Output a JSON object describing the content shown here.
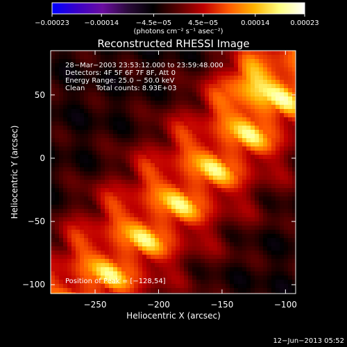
{
  "chart_data": {
    "type": "heatmap",
    "title": "Reconstructed RHESSI Image",
    "xlabel": "Heliocentric X (arcsec)",
    "ylabel": "Heliocentric Y (arcsec)",
    "xlim": [
      -285,
      -92
    ],
    "ylim": [
      -107,
      85
    ],
    "x_ticks": [
      -250,
      -200,
      -150,
      -100
    ],
    "y_ticks": [
      -100,
      -50,
      0,
      50
    ],
    "x_tick_labels": [
      "−250",
      "−200",
      "−150",
      "−100"
    ],
    "y_tick_labels": [
      "−100",
      "−50",
      "0",
      "50"
    ],
    "colorbar": {
      "min": -0.00023,
      "max": 0.00023,
      "ticks": [
        -0.00023,
        -0.00014,
        -4.5e-05,
        4.5e-05,
        0.00014,
        0.00023
      ],
      "tick_labels": [
        "−0.00023",
        "−0.00014",
        "−4.5e−05",
        "4.5e−05",
        "0.00014",
        "0.00023"
      ],
      "units": "(photons cm⁻² s⁻¹ asec⁻²)",
      "colormap": [
        "#0000ff",
        "#3a00c8",
        "#6a0da0",
        "#2a0a3a",
        "#000000",
        "#5a0000",
        "#c00000",
        "#ff5a00",
        "#ffb400",
        "#ffff80",
        "#ffffff"
      ]
    },
    "annotations": [
      "28−Mar−2003 23:53:12.000 to 23:59:48.000",
      "Detectors: 4F 5F 6F 7F 8F, Att 0",
      "Energy Range: 25.0 − 50.0 keV",
      "Clean     Total counts: 8.93E+03"
    ],
    "peak_label": "Position of Peak = [−128,54]",
    "peak_position": [
      -128,
      54
    ],
    "grid": false
  },
  "footer": {
    "date": "12−Jun−2013 05:52"
  }
}
